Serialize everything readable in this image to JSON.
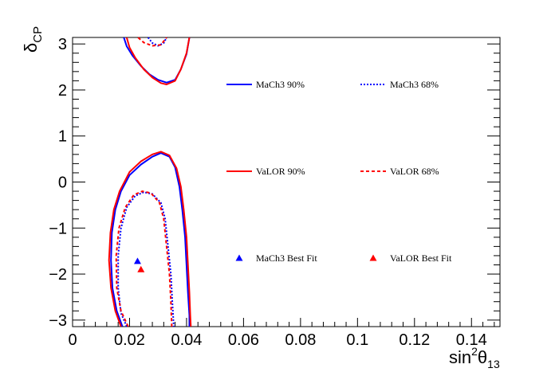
{
  "chart_data": {
    "type": "line",
    "xlabel": "sin²θ₁₃",
    "ylabel": "δCP",
    "xlim": [
      0,
      0.15
    ],
    "ylim": [
      -3.1416,
      3.1416
    ],
    "xticks": [
      0,
      0.02,
      0.04,
      0.06,
      0.08,
      0.1,
      0.12,
      0.14
    ],
    "xtick_labels": [
      "0",
      "0.02",
      "0.04",
      "0.06",
      "0.08",
      "0.1",
      "0.12",
      "0.14"
    ],
    "yticks": [
      -3,
      -2,
      -1,
      0,
      1,
      2,
      3
    ],
    "ytick_labels": [
      "−3",
      "−2",
      "−1",
      "0",
      "1",
      "2",
      "3"
    ],
    "grid": false,
    "legend_placement": "inside-right",
    "series": [
      {
        "name": "MaCh3 90%",
        "color": "#0000ff",
        "dash": "solid",
        "segments": [
          [
            [
              0.018,
              3.14
            ],
            [
              0.019,
              2.95
            ],
            [
              0.021,
              2.75
            ],
            [
              0.024,
              2.52
            ],
            [
              0.027,
              2.34
            ],
            [
              0.03,
              2.22
            ],
            [
              0.033,
              2.16
            ],
            [
              0.036,
              2.22
            ],
            [
              0.038,
              2.45
            ],
            [
              0.04,
              2.78
            ],
            [
              0.041,
              3.14
            ]
          ],
          [
            [
              0.0175,
              -3.14
            ],
            [
              0.0155,
              -2.8
            ],
            [
              0.014,
              -2.3
            ],
            [
              0.0135,
              -1.7
            ],
            [
              0.0138,
              -1.1
            ],
            [
              0.015,
              -0.6
            ],
            [
              0.017,
              -0.2
            ],
            [
              0.02,
              0.15
            ],
            [
              0.024,
              0.38
            ],
            [
              0.028,
              0.55
            ],
            [
              0.031,
              0.63
            ],
            [
              0.034,
              0.55
            ],
            [
              0.036,
              0.32
            ],
            [
              0.0375,
              -0.1
            ],
            [
              0.0385,
              -0.6
            ],
            [
              0.0395,
              -1.2
            ],
            [
              0.04,
              -1.8
            ],
            [
              0.0405,
              -2.4
            ],
            [
              0.041,
              -2.9
            ],
            [
              0.041,
              -3.14
            ]
          ]
        ]
      },
      {
        "name": "MaCh3 68%",
        "color": "#0000ff",
        "dash": "dotted",
        "segments": [
          [
            [
              0.0265,
              3.14
            ],
            [
              0.028,
              3.02
            ],
            [
              0.03,
              2.96
            ],
            [
              0.032,
              3.02
            ],
            [
              0.033,
              3.14
            ]
          ],
          [
            [
              0.019,
              -3.14
            ],
            [
              0.017,
              -2.85
            ],
            [
              0.016,
              -2.3
            ],
            [
              0.016,
              -1.6
            ],
            [
              0.017,
              -1.0
            ],
            [
              0.019,
              -0.55
            ],
            [
              0.022,
              -0.3
            ],
            [
              0.025,
              -0.22
            ],
            [
              0.028,
              -0.26
            ],
            [
              0.031,
              -0.45
            ],
            [
              0.0325,
              -0.8
            ],
            [
              0.0335,
              -1.4
            ],
            [
              0.0345,
              -2.0
            ],
            [
              0.035,
              -2.6
            ],
            [
              0.0355,
              -3.14
            ]
          ]
        ]
      },
      {
        "name": "VaLOR 90%",
        "color": "#ff0000",
        "dash": "solid",
        "segments": [
          [
            [
              0.019,
              3.14
            ],
            [
              0.02,
              2.92
            ],
            [
              0.022,
              2.7
            ],
            [
              0.025,
              2.45
            ],
            [
              0.028,
              2.27
            ],
            [
              0.031,
              2.15
            ],
            [
              0.033,
              2.12
            ],
            [
              0.036,
              2.2
            ],
            [
              0.038,
              2.45
            ],
            [
              0.04,
              2.8
            ],
            [
              0.041,
              3.14
            ]
          ],
          [
            [
              0.017,
              -3.14
            ],
            [
              0.015,
              -2.8
            ],
            [
              0.0135,
              -2.3
            ],
            [
              0.0128,
              -1.7
            ],
            [
              0.0133,
              -1.1
            ],
            [
              0.0145,
              -0.6
            ],
            [
              0.0165,
              -0.2
            ],
            [
              0.02,
              0.22
            ],
            [
              0.024,
              0.45
            ],
            [
              0.028,
              0.6
            ],
            [
              0.031,
              0.66
            ],
            [
              0.034,
              0.58
            ],
            [
              0.0365,
              0.3
            ],
            [
              0.038,
              -0.1
            ],
            [
              0.039,
              -0.6
            ],
            [
              0.04,
              -1.2
            ],
            [
              0.0405,
              -1.8
            ],
            [
              0.041,
              -2.4
            ],
            [
              0.0413,
              -2.9
            ],
            [
              0.0415,
              -3.14
            ]
          ]
        ]
      },
      {
        "name": "VaLOR 68%",
        "color": "#ff0000",
        "dash": "dashed",
        "segments": [
          [
            [
              0.023,
              3.14
            ],
            [
              0.025,
              3.03
            ],
            [
              0.028,
              2.96
            ],
            [
              0.031,
              2.98
            ],
            [
              0.033,
              3.14
            ]
          ],
          [
            [
              0.0195,
              -3.14
            ],
            [
              0.017,
              -2.8
            ],
            [
              0.0155,
              -2.3
            ],
            [
              0.0153,
              -1.6
            ],
            [
              0.0163,
              -1.0
            ],
            [
              0.0185,
              -0.55
            ],
            [
              0.0215,
              -0.28
            ],
            [
              0.0245,
              -0.2
            ],
            [
              0.0275,
              -0.24
            ],
            [
              0.0305,
              -0.45
            ],
            [
              0.032,
              -0.8
            ],
            [
              0.033,
              -1.4
            ],
            [
              0.034,
              -2.0
            ],
            [
              0.0345,
              -2.6
            ],
            [
              0.0348,
              -3.14
            ]
          ]
        ]
      },
      {
        "name": "MaCh3 Best Fit",
        "color": "#0000ff",
        "marker": "triangle",
        "points": [
          [
            0.0228,
            -1.72
          ]
        ]
      },
      {
        "name": "VaLOR Best Fit",
        "color": "#ff0000",
        "marker": "triangle",
        "points": [
          [
            0.024,
            -1.9
          ]
        ]
      }
    ]
  }
}
